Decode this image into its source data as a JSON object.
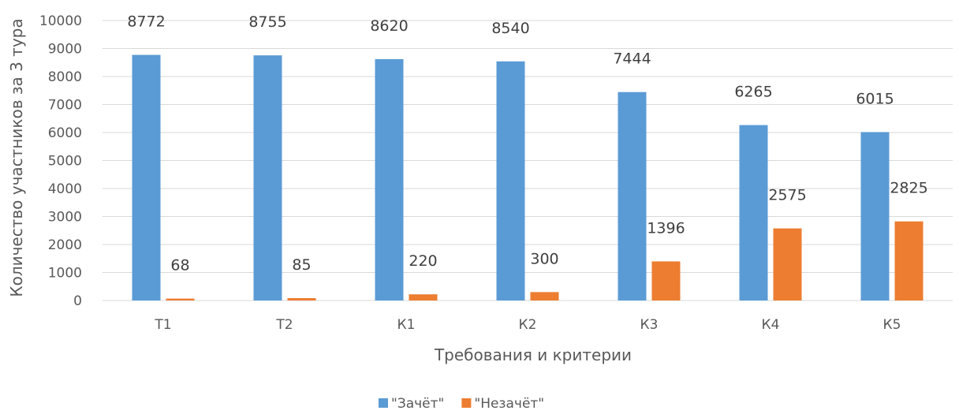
{
  "chart_data": {
    "type": "bar",
    "title": "",
    "xlabel": "Требования и критерии",
    "ylabel": "Количество участников за 3 тура",
    "categories": [
      "Т1",
      "Т2",
      "К1",
      "К2",
      "К3",
      "К4",
      "К5"
    ],
    "series": [
      {
        "name": "\"Зачёт\"",
        "color": "#5B9BD5",
        "values": [
          8772,
          8755,
          8620,
          8540,
          7444,
          6265,
          6015
        ]
      },
      {
        "name": "\"Незачёт\"",
        "color": "#ED7D31",
        "values": [
          68,
          85,
          220,
          300,
          1396,
          2575,
          2825
        ]
      }
    ],
    "ylim": [
      0,
      10000
    ],
    "yticks": [
      0,
      1000,
      2000,
      3000,
      4000,
      5000,
      6000,
      7000,
      8000,
      9000,
      10000
    ],
    "grid": true,
    "legend_position": "bottom",
    "data_labels": true
  }
}
